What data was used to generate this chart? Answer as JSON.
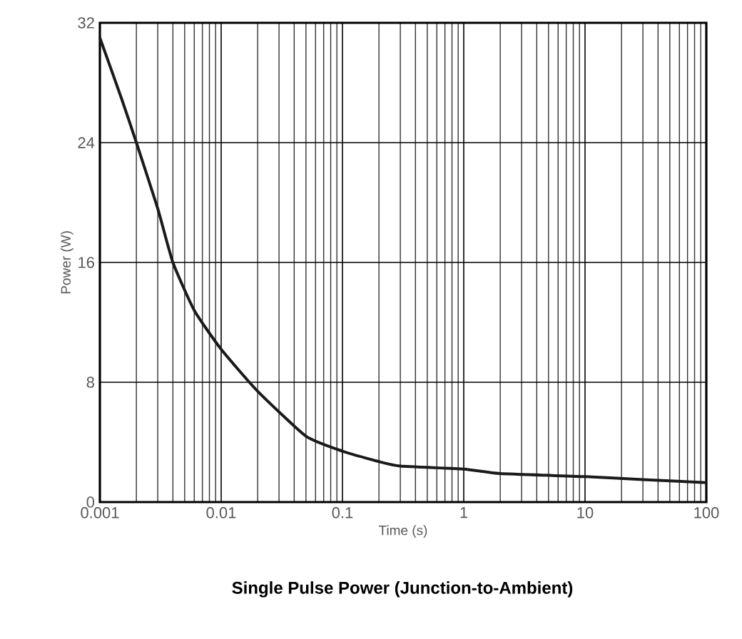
{
  "chart_data": {
    "type": "line",
    "title": "Single Pulse Power (Junction-to-Ambient)",
    "xlabel": "Time (s)",
    "ylabel": "Power (W)",
    "log": "x",
    "grid": true,
    "marker": "none",
    "line_style": "solid",
    "x": [
      0.001,
      0.0015,
      0.002,
      0.003,
      0.004,
      0.006,
      0.01,
      0.02,
      0.05,
      0.1,
      0.2,
      0.3,
      1,
      2,
      10,
      30,
      100
    ],
    "series": [
      {
        "color": "#1a1a1a",
        "values": [
          31,
          27,
          24,
          19.6,
          16,
          12.8,
          10.2,
          7.4,
          4.4,
          3.4,
          2.7,
          2.4,
          2.2,
          1.9,
          1.7,
          1.5,
          1.3
        ]
      }
    ],
    "xlim": [
      0.001,
      100
    ],
    "ylim": [
      0,
      32
    ],
    "xticks": [
      0.001,
      0.01,
      0.1,
      1,
      10,
      100
    ],
    "yticks": [
      0,
      8,
      16,
      24,
      32
    ]
  }
}
